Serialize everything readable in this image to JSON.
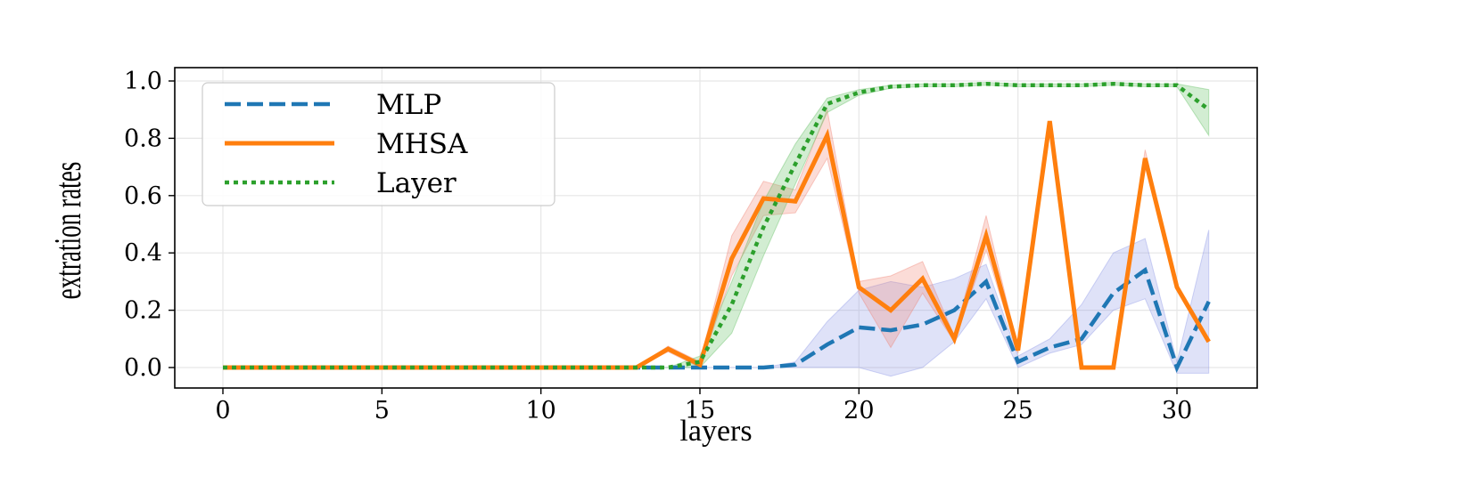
{
  "chart_data": {
    "type": "line",
    "title": "",
    "xlabel": "layers",
    "ylabel": "extration rates",
    "xlim": [
      -1.5,
      32.5
    ],
    "ylim": [
      -0.07,
      1.05
    ],
    "xticks": [
      0,
      5,
      10,
      15,
      20,
      25,
      30
    ],
    "xtick_labels": [
      "0",
      "5",
      "10",
      "15",
      "20",
      "25",
      "30"
    ],
    "yticks": [
      0.0,
      0.2,
      0.4,
      0.6,
      0.8,
      1.0
    ],
    "ytick_labels": [
      "0.0",
      "0.2",
      "0.4",
      "0.6",
      "0.8",
      "1.0"
    ],
    "grid": true,
    "legend_position": "top-left",
    "x": [
      0,
      1,
      2,
      3,
      4,
      5,
      6,
      7,
      8,
      9,
      10,
      11,
      12,
      13,
      14,
      15,
      16,
      17,
      18,
      19,
      20,
      21,
      22,
      23,
      24,
      25,
      26,
      27,
      28,
      29,
      30,
      31
    ],
    "series": [
      {
        "name": "MLP",
        "color": "#1f77b4",
        "band_color": "#8c96e6",
        "style": "dashed",
        "values": [
          0,
          0,
          0,
          0,
          0,
          0,
          0,
          0,
          0,
          0,
          0,
          0,
          0,
          0,
          0,
          0,
          0,
          0,
          0.01,
          0.08,
          0.14,
          0.13,
          0.15,
          0.2,
          0.3,
          0.02,
          0.07,
          0.1,
          0.26,
          0.34,
          0.0,
          0.23
        ],
        "lower": [
          0,
          0,
          0,
          0,
          0,
          0,
          0,
          0,
          0,
          0,
          0,
          0,
          0,
          0,
          0,
          0,
          0,
          0,
          0.0,
          0.0,
          0.0,
          -0.03,
          0.0,
          0.09,
          0.24,
          0.0,
          0.05,
          0.08,
          0.2,
          0.24,
          -0.02,
          -0.02
        ],
        "upper": [
          0,
          0,
          0,
          0,
          0,
          0,
          0,
          0,
          0,
          0,
          0,
          0,
          0,
          0,
          0,
          0,
          0,
          0,
          0.02,
          0.16,
          0.27,
          0.3,
          0.28,
          0.31,
          0.36,
          0.04,
          0.1,
          0.22,
          0.4,
          0.45,
          0.02,
          0.48
        ]
      },
      {
        "name": "MHSA",
        "color": "#ff7f0e",
        "band_color": "#f08070",
        "style": "solid",
        "values": [
          0,
          0,
          0,
          0,
          0,
          0,
          0,
          0,
          0,
          0,
          0,
          0,
          0,
          0,
          0.065,
          0.01,
          0.38,
          0.59,
          0.58,
          0.81,
          0.28,
          0.2,
          0.31,
          0.1,
          0.46,
          0.06,
          0.86,
          0.0,
          0.0,
          0.73,
          0.28,
          0.09
        ],
        "lower": [
          0,
          0,
          0,
          0,
          0,
          0,
          0,
          0,
          0,
          0,
          0,
          0,
          0,
          0,
          0.055,
          0.0,
          0.32,
          0.53,
          0.54,
          0.73,
          0.26,
          0.07,
          0.26,
          0.09,
          0.41,
          0.05,
          0.86,
          0.0,
          0.0,
          0.7,
          0.28,
          0.09
        ],
        "upper": [
          0,
          0,
          0,
          0,
          0,
          0,
          0,
          0,
          0,
          0,
          0,
          0,
          0,
          0,
          0.075,
          0.02,
          0.46,
          0.65,
          0.62,
          0.9,
          0.3,
          0.32,
          0.37,
          0.11,
          0.53,
          0.07,
          0.86,
          0.0,
          0.0,
          0.76,
          0.28,
          0.09
        ]
      },
      {
        "name": "Layer",
        "color": "#2ca02c",
        "band_color": "#5fbf5f",
        "style": "dotted",
        "values": [
          0,
          0,
          0,
          0,
          0,
          0,
          0,
          0,
          0,
          0,
          0,
          0,
          0,
          0,
          0,
          0.02,
          0.22,
          0.49,
          0.71,
          0.92,
          0.96,
          0.98,
          0.985,
          0.985,
          0.99,
          0.985,
          0.985,
          0.985,
          0.99,
          0.985,
          0.985,
          0.9
        ],
        "lower": [
          0,
          0,
          0,
          0,
          0,
          0,
          0,
          0,
          0,
          0,
          0,
          0,
          0,
          0,
          0,
          0.0,
          0.12,
          0.39,
          0.64,
          0.89,
          0.95,
          0.975,
          0.98,
          0.98,
          0.985,
          0.98,
          0.98,
          0.98,
          0.985,
          0.98,
          0.98,
          0.81
        ],
        "upper": [
          0,
          0,
          0,
          0,
          0,
          0,
          0,
          0,
          0,
          0,
          0,
          0,
          0,
          0,
          0,
          0.04,
          0.3,
          0.58,
          0.78,
          0.94,
          0.97,
          0.985,
          0.99,
          0.99,
          0.995,
          0.99,
          0.99,
          0.99,
          0.995,
          0.99,
          0.99,
          0.97
        ]
      }
    ]
  }
}
